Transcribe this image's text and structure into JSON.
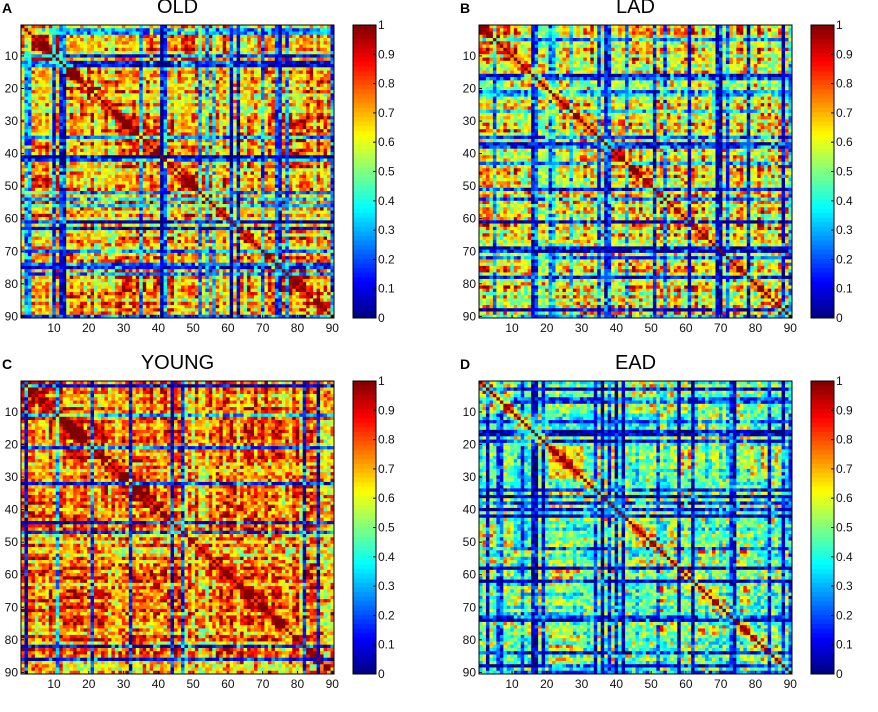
{
  "chart_data": [
    {
      "panel_label": "A",
      "title": "OLD",
      "type": "heatmap",
      "matrix_size": 90,
      "xticks": [
        10,
        20,
        30,
        40,
        50,
        60,
        70,
        80,
        90
      ],
      "yticks": [
        10,
        20,
        30,
        40,
        50,
        60,
        70,
        80,
        90
      ],
      "colorbar": {
        "range": [
          0,
          1
        ],
        "ticks": [
          "0",
          "0.1",
          "0.2",
          "0.3",
          "0.4",
          "0.5",
          "0.6",
          "0.7",
          "0.8",
          "0.9",
          "1"
        ],
        "colormap": "jet"
      }
    },
    {
      "panel_label": "B",
      "title": "LAD",
      "type": "heatmap",
      "matrix_size": 90,
      "xticks": [
        10,
        20,
        30,
        40,
        50,
        60,
        70,
        80,
        90
      ],
      "yticks": [
        10,
        20,
        30,
        40,
        50,
        60,
        70,
        80,
        90
      ],
      "colorbar": {
        "range": [
          0,
          1
        ],
        "ticks": [
          "0",
          "0.1",
          "0.2",
          "0.3",
          "0.4",
          "0.5",
          "0.6",
          "0.7",
          "0.8",
          "0.9",
          "1"
        ],
        "colormap": "jet"
      }
    },
    {
      "panel_label": "C",
      "title": "YOUNG",
      "type": "heatmap",
      "matrix_size": 90,
      "xticks": [
        10,
        20,
        30,
        40,
        50,
        60,
        70,
        80,
        90
      ],
      "yticks": [
        10,
        20,
        30,
        40,
        50,
        60,
        70,
        80,
        90
      ],
      "colorbar": {
        "range": [
          0,
          1
        ],
        "ticks": [
          "0",
          "0.1",
          "0.2",
          "0.3",
          "0.4",
          "0.5",
          "0.6",
          "0.7",
          "0.8",
          "0.9",
          "1"
        ],
        "colormap": "jet"
      }
    },
    {
      "panel_label": "D",
      "title": "EAD",
      "type": "heatmap",
      "matrix_size": 90,
      "xticks": [
        10,
        20,
        30,
        40,
        50,
        60,
        70,
        80,
        90
      ],
      "yticks": [
        10,
        20,
        30,
        40,
        50,
        60,
        70,
        80,
        90
      ],
      "colorbar": {
        "range": [
          0,
          1
        ],
        "ticks": [
          "0",
          "0.1",
          "0.2",
          "0.3",
          "0.4",
          "0.5",
          "0.6",
          "0.7",
          "0.8",
          "0.9",
          "1"
        ],
        "colormap": "jet"
      }
    }
  ]
}
